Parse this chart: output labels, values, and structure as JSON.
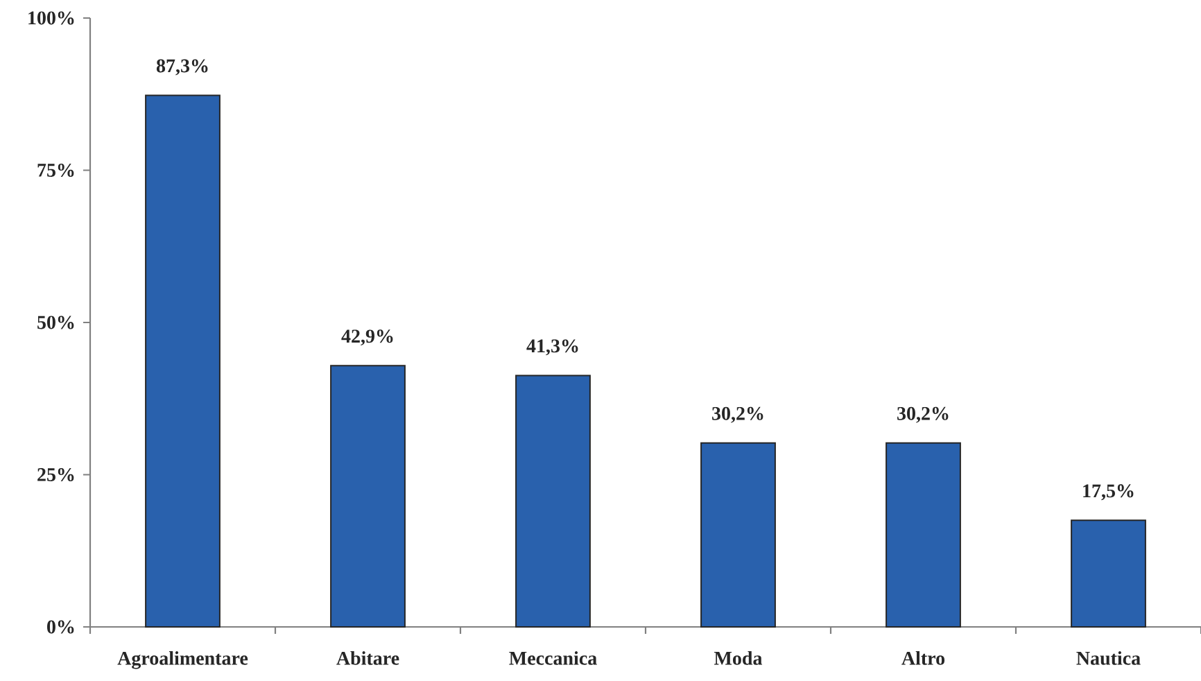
{
  "chart_data": {
    "type": "bar",
    "categories": [
      "Agroalimentare",
      "Abitare",
      "Meccanica",
      "Moda",
      "Altro",
      "Nautica"
    ],
    "values": [
      87.3,
      42.9,
      41.3,
      30.2,
      30.2,
      17.5
    ],
    "value_labels": [
      "87,3%",
      "42,9%",
      "41,3%",
      "30,2%",
      "30,2%",
      "17,5%"
    ],
    "color": "#2961ad",
    "ylim": [
      0,
      100
    ],
    "yticks": [
      {
        "value": 0,
        "label": "0%"
      },
      {
        "value": 25,
        "label": "25%"
      },
      {
        "value": 50,
        "label": "50%"
      },
      {
        "value": 75,
        "label": "75%"
      },
      {
        "value": 100,
        "label": "100%"
      }
    ]
  }
}
